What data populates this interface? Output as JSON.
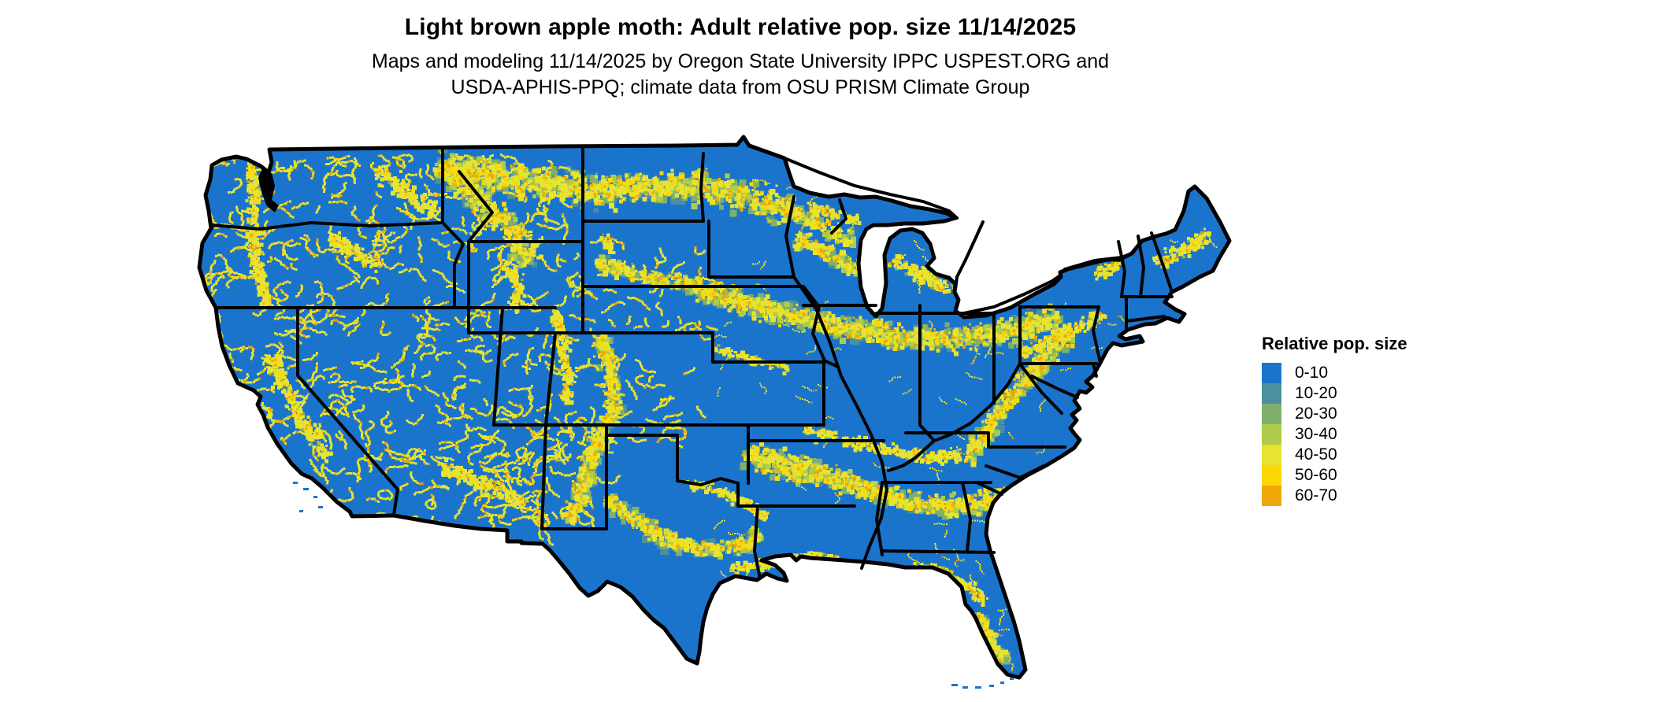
{
  "header": {
    "title": "Light brown apple moth: Adult relative pop. size 11/14/2025",
    "subtitle_line1": "Maps and modeling 11/14/2025 by Oregon State University IPPC USPEST.ORG and",
    "subtitle_line2": "USDA-APHIS-PPQ; climate data from OSU PRISM Climate Group"
  },
  "legend": {
    "title": "Relative pop. size",
    "items": [
      {
        "label": "0-10",
        "color": "#1B74CC"
      },
      {
        "label": "10-20",
        "color": "#4C90A0"
      },
      {
        "label": "20-30",
        "color": "#7FAF6B"
      },
      {
        "label": "30-40",
        "color": "#AECC49"
      },
      {
        "label": "40-50",
        "color": "#E7E32F"
      },
      {
        "label": "50-60",
        "color": "#FBD703"
      },
      {
        "label": "60-70",
        "color": "#EFA707"
      }
    ]
  },
  "map": {
    "region": "Continental United States",
    "land_base_color": "#1B74CC",
    "water_background_color": "#FFFFFF",
    "state_border_color": "#000000"
  }
}
